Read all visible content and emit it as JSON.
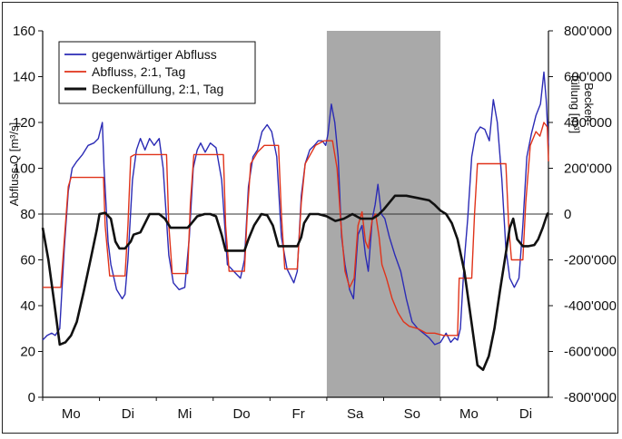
{
  "chart_data": {
    "type": "line",
    "categories": [
      "Mo",
      "Di",
      "Mi",
      "Do",
      "Fr",
      "Sa",
      "So",
      "Mo",
      "Di"
    ],
    "shaded_days": [
      "Sa",
      "So"
    ],
    "shade_color": "#a9a9a9",
    "x_range": [
      0,
      8.9
    ],
    "y_left": {
      "label": "Abfluss Q [m³/s]",
      "range": [
        0,
        160
      ],
      "ticks": [
        0,
        20,
        40,
        60,
        80,
        100,
        120,
        140,
        160
      ],
      "tick_labels": [
        "0",
        "20",
        "40",
        "60",
        "80",
        "100",
        "120",
        "140",
        "160"
      ]
    },
    "y_right": {
      "label_line1": "Becken-",
      "label_line2": "füllung [m³]",
      "range": [
        -800000,
        800000
      ],
      "ticks": [
        -800000,
        -600000,
        -400000,
        -200000,
        0,
        200000,
        400000,
        600000,
        800000
      ],
      "tick_labels": [
        "-800'000",
        "-600'000",
        "-400'000",
        "-200'000",
        "0",
        "200'000",
        "400'000",
        "600'000",
        "800'000"
      ]
    },
    "reference_line": {
      "y": 80
    },
    "legend_position": "top-left",
    "series": [
      {
        "name": "gegenwärtiger Abfluss",
        "color": "#2b2bb5",
        "axis": "left",
        "points": [
          [
            0.0,
            25
          ],
          [
            0.08,
            27
          ],
          [
            0.16,
            28
          ],
          [
            0.22,
            27
          ],
          [
            0.3,
            30
          ],
          [
            0.38,
            65
          ],
          [
            0.45,
            90
          ],
          [
            0.52,
            100
          ],
          [
            0.6,
            103
          ],
          [
            0.7,
            106
          ],
          [
            0.8,
            110
          ],
          [
            0.9,
            111
          ],
          [
            0.98,
            113
          ],
          [
            1.05,
            120
          ],
          [
            1.08,
            100
          ],
          [
            1.15,
            68
          ],
          [
            1.2,
            58
          ],
          [
            1.3,
            47
          ],
          [
            1.4,
            43
          ],
          [
            1.45,
            45
          ],
          [
            1.5,
            60
          ],
          [
            1.58,
            95
          ],
          [
            1.65,
            108
          ],
          [
            1.72,
            113
          ],
          [
            1.8,
            108
          ],
          [
            1.88,
            113
          ],
          [
            1.96,
            110
          ],
          [
            2.05,
            113
          ],
          [
            2.12,
            100
          ],
          [
            2.22,
            62
          ],
          [
            2.3,
            50
          ],
          [
            2.4,
            47
          ],
          [
            2.5,
            48
          ],
          [
            2.58,
            70
          ],
          [
            2.65,
            100
          ],
          [
            2.72,
            108
          ],
          [
            2.78,
            111
          ],
          [
            2.86,
            107
          ],
          [
            2.95,
            111
          ],
          [
            3.05,
            109
          ],
          [
            3.15,
            95
          ],
          [
            3.25,
            58
          ],
          [
            3.4,
            54
          ],
          [
            3.48,
            52
          ],
          [
            3.55,
            60
          ],
          [
            3.62,
            92
          ],
          [
            3.7,
            105
          ],
          [
            3.78,
            108
          ],
          [
            3.86,
            116
          ],
          [
            3.95,
            119
          ],
          [
            4.03,
            116
          ],
          [
            4.12,
            105
          ],
          [
            4.2,
            70
          ],
          [
            4.3,
            56
          ],
          [
            4.42,
            50
          ],
          [
            4.48,
            55
          ],
          [
            4.55,
            88
          ],
          [
            4.62,
            102
          ],
          [
            4.7,
            108
          ],
          [
            4.78,
            110
          ],
          [
            4.85,
            112
          ],
          [
            4.92,
            112
          ],
          [
            4.98,
            110
          ],
          [
            5.02,
            115
          ],
          [
            5.08,
            128
          ],
          [
            5.14,
            120
          ],
          [
            5.2,
            105
          ],
          [
            5.26,
            70
          ],
          [
            5.32,
            58
          ],
          [
            5.4,
            47
          ],
          [
            5.47,
            43
          ],
          [
            5.55,
            71
          ],
          [
            5.62,
            75
          ],
          [
            5.68,
            62
          ],
          [
            5.73,
            55
          ],
          [
            5.8,
            78
          ],
          [
            5.85,
            84
          ],
          [
            5.9,
            93
          ],
          [
            5.96,
            80
          ],
          [
            6.02,
            78
          ],
          [
            6.1,
            70
          ],
          [
            6.2,
            62
          ],
          [
            6.3,
            55
          ],
          [
            6.4,
            43
          ],
          [
            6.5,
            33
          ],
          [
            6.6,
            30
          ],
          [
            6.7,
            28
          ],
          [
            6.8,
            26
          ],
          [
            6.9,
            23
          ],
          [
            7.0,
            24
          ],
          [
            7.1,
            28
          ],
          [
            7.18,
            24
          ],
          [
            7.25,
            26
          ],
          [
            7.3,
            25
          ],
          [
            7.35,
            30
          ],
          [
            7.42,
            60
          ],
          [
            7.48,
            78
          ],
          [
            7.55,
            105
          ],
          [
            7.62,
            115
          ],
          [
            7.7,
            118
          ],
          [
            7.78,
            117
          ],
          [
            7.86,
            112
          ],
          [
            7.93,
            130
          ],
          [
            8.0,
            120
          ],
          [
            8.08,
            95
          ],
          [
            8.15,
            65
          ],
          [
            8.22,
            52
          ],
          [
            8.3,
            48
          ],
          [
            8.38,
            52
          ],
          [
            8.45,
            75
          ],
          [
            8.52,
            105
          ],
          [
            8.6,
            115
          ],
          [
            8.68,
            123
          ],
          [
            8.76,
            128
          ],
          [
            8.82,
            142
          ],
          [
            8.86,
            130
          ],
          [
            8.9,
            110
          ]
        ]
      },
      {
        "name": "Abfluss, 2:1, Tag",
        "color": "#e0331a",
        "axis": "left",
        "points": [
          [
            0.0,
            48
          ],
          [
            0.32,
            48
          ],
          [
            0.4,
            75
          ],
          [
            0.45,
            92
          ],
          [
            0.5,
            96
          ],
          [
            1.07,
            96
          ],
          [
            1.1,
            75
          ],
          [
            1.18,
            53
          ],
          [
            1.45,
            53
          ],
          [
            1.5,
            75
          ],
          [
            1.55,
            105
          ],
          [
            1.62,
            106
          ],
          [
            2.18,
            106
          ],
          [
            2.22,
            75
          ],
          [
            2.28,
            54
          ],
          [
            2.55,
            54
          ],
          [
            2.6,
            85
          ],
          [
            2.66,
            106
          ],
          [
            3.18,
            106
          ],
          [
            3.22,
            75
          ],
          [
            3.28,
            55
          ],
          [
            3.55,
            55
          ],
          [
            3.6,
            80
          ],
          [
            3.66,
            102
          ],
          [
            3.78,
            107
          ],
          [
            3.9,
            110
          ],
          [
            4.15,
            110
          ],
          [
            4.2,
            80
          ],
          [
            4.26,
            56
          ],
          [
            4.48,
            56
          ],
          [
            4.55,
            85
          ],
          [
            4.62,
            102
          ],
          [
            4.8,
            110
          ],
          [
            4.95,
            112
          ],
          [
            5.1,
            112
          ],
          [
            5.18,
            100
          ],
          [
            5.25,
            75
          ],
          [
            5.32,
            55
          ],
          [
            5.4,
            48
          ],
          [
            5.48,
            52
          ],
          [
            5.55,
            75
          ],
          [
            5.62,
            81
          ],
          [
            5.68,
            68
          ],
          [
            5.73,
            65
          ],
          [
            5.8,
            78
          ],
          [
            5.86,
            80
          ],
          [
            5.92,
            70
          ],
          [
            5.97,
            58
          ],
          [
            6.05,
            52
          ],
          [
            6.15,
            43
          ],
          [
            6.25,
            37
          ],
          [
            6.35,
            33
          ],
          [
            6.45,
            31
          ],
          [
            6.6,
            30
          ],
          [
            6.75,
            28
          ],
          [
            6.9,
            28
          ],
          [
            7.05,
            27
          ],
          [
            7.3,
            27
          ],
          [
            7.33,
            52
          ],
          [
            7.55,
            52
          ],
          [
            7.6,
            80
          ],
          [
            7.65,
            102
          ],
          [
            8.15,
            102
          ],
          [
            8.2,
            75
          ],
          [
            8.25,
            60
          ],
          [
            8.45,
            60
          ],
          [
            8.5,
            85
          ],
          [
            8.58,
            110
          ],
          [
            8.68,
            116
          ],
          [
            8.75,
            114
          ],
          [
            8.82,
            120
          ],
          [
            8.88,
            118
          ],
          [
            8.9,
            103
          ]
        ]
      },
      {
        "name": "Beckenfüllung, 2:1, Tag",
        "color": "#111111",
        "axis": "right",
        "points": [
          [
            0.0,
            -60000
          ],
          [
            0.1,
            -200000
          ],
          [
            0.2,
            -380000
          ],
          [
            0.3,
            -570000
          ],
          [
            0.4,
            -560000
          ],
          [
            0.5,
            -530000
          ],
          [
            0.6,
            -470000
          ],
          [
            0.72,
            -340000
          ],
          [
            0.85,
            -190000
          ],
          [
            0.95,
            -70000
          ],
          [
            1.0,
            0
          ],
          [
            1.1,
            5000
          ],
          [
            1.2,
            -20000
          ],
          [
            1.28,
            -120000
          ],
          [
            1.35,
            -150000
          ],
          [
            1.45,
            -150000
          ],
          [
            1.55,
            -120000
          ],
          [
            1.6,
            -90000
          ],
          [
            1.72,
            -80000
          ],
          [
            1.8,
            -40000
          ],
          [
            1.88,
            0
          ],
          [
            2.05,
            0
          ],
          [
            2.15,
            -20000
          ],
          [
            2.25,
            -60000
          ],
          [
            2.4,
            -60000
          ],
          [
            2.55,
            -60000
          ],
          [
            2.62,
            -40000
          ],
          [
            2.72,
            -10000
          ],
          [
            2.85,
            0
          ],
          [
            2.95,
            0
          ],
          [
            3.05,
            -10000
          ],
          [
            3.15,
            -90000
          ],
          [
            3.22,
            -160000
          ],
          [
            3.4,
            -160000
          ],
          [
            3.55,
            -160000
          ],
          [
            3.62,
            -110000
          ],
          [
            3.72,
            -50000
          ],
          [
            3.85,
            0
          ],
          [
            3.95,
            -5000
          ],
          [
            4.05,
            -50000
          ],
          [
            4.15,
            -140000
          ],
          [
            4.3,
            -140000
          ],
          [
            4.48,
            -140000
          ],
          [
            4.55,
            -100000
          ],
          [
            4.6,
            -40000
          ],
          [
            4.7,
            0
          ],
          [
            4.85,
            0
          ],
          [
            5.0,
            -10000
          ],
          [
            5.15,
            -30000
          ],
          [
            5.3,
            -20000
          ],
          [
            5.45,
            0
          ],
          [
            5.6,
            -20000
          ],
          [
            5.8,
            -20000
          ],
          [
            5.9,
            -5000
          ],
          [
            6.0,
            20000
          ],
          [
            6.2,
            80000
          ],
          [
            6.4,
            80000
          ],
          [
            6.6,
            70000
          ],
          [
            6.8,
            60000
          ],
          [
            6.9,
            40000
          ],
          [
            7.0,
            15000
          ],
          [
            7.1,
            0
          ],
          [
            7.2,
            -40000
          ],
          [
            7.3,
            -110000
          ],
          [
            7.42,
            -250000
          ],
          [
            7.55,
            -480000
          ],
          [
            7.65,
            -660000
          ],
          [
            7.75,
            -680000
          ],
          [
            7.85,
            -620000
          ],
          [
            7.95,
            -500000
          ],
          [
            8.05,
            -330000
          ],
          [
            8.15,
            -170000
          ],
          [
            8.22,
            -60000
          ],
          [
            8.28,
            -20000
          ],
          [
            8.35,
            -110000
          ],
          [
            8.45,
            -140000
          ],
          [
            8.55,
            -140000
          ],
          [
            8.65,
            -135000
          ],
          [
            8.72,
            -110000
          ],
          [
            8.8,
            -60000
          ],
          [
            8.88,
            0
          ],
          [
            8.9,
            5000
          ]
        ]
      }
    ]
  }
}
